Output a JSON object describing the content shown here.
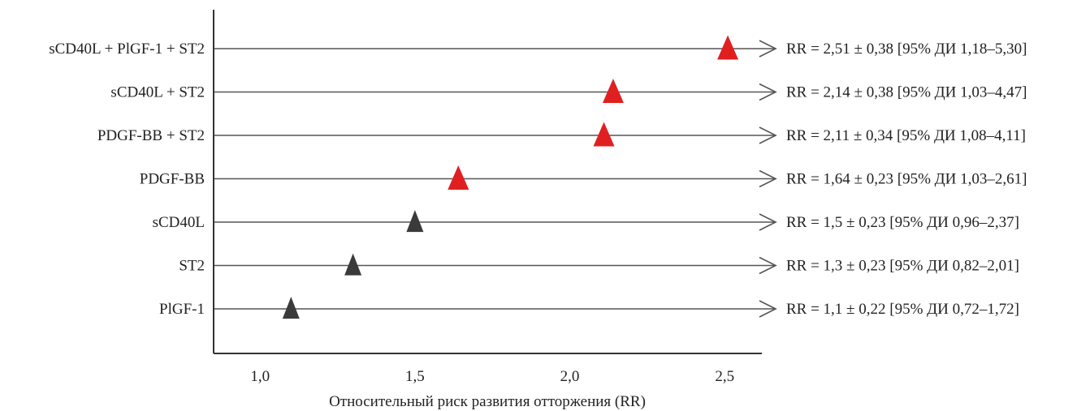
{
  "chart_data": {
    "type": "scatter",
    "xlabel": "Относительный риск развития отторжения (RR)",
    "xlim": [
      0.85,
      2.62
    ],
    "xticks": [
      {
        "value": 1.0,
        "label": "1,0"
      },
      {
        "value": 1.5,
        "label": "1,5"
      },
      {
        "value": 2.0,
        "label": "2,0"
      },
      {
        "value": 2.5,
        "label": "2,5"
      }
    ],
    "rows": [
      {
        "label": "sCD40L + PlGF-1 + ST2",
        "value": 2.51,
        "significant": true,
        "annotation": "RR = 2,51 ± 0,38 [95% ДИ 1,18–5,30]"
      },
      {
        "label": "sCD40L + ST2",
        "value": 2.14,
        "significant": true,
        "annotation": "RR = 2,14 ± 0,38 [95% ДИ 1,03–4,47]"
      },
      {
        "label": "PDGF-BB + ST2",
        "value": 2.11,
        "significant": true,
        "annotation": "RR = 2,11 ± 0,34 [95% ДИ 1,08–4,11]"
      },
      {
        "label": "PDGF-BB",
        "value": 1.64,
        "significant": true,
        "annotation": "RR = 1,64 ± 0,23 [95% ДИ 1,03–2,61]"
      },
      {
        "label": "sCD40L",
        "value": 1.5,
        "significant": false,
        "annotation": "RR = 1,5 ± 0,23 [95% ДИ 0,96–2,37]"
      },
      {
        "label": "ST2",
        "value": 1.3,
        "significant": false,
        "annotation": "RR = 1,3 ± 0,23 [95% ДИ 0,82–2,01]"
      },
      {
        "label": "PlGF-1",
        "value": 1.1,
        "significant": false,
        "annotation": "RR = 1,1 ± 0,22 [95% ДИ 0,72–1,72]"
      }
    ],
    "colors": {
      "significant": "#e02020",
      "non_significant": "#3a3a3a",
      "line": "#555555",
      "axis": "#333333"
    }
  }
}
